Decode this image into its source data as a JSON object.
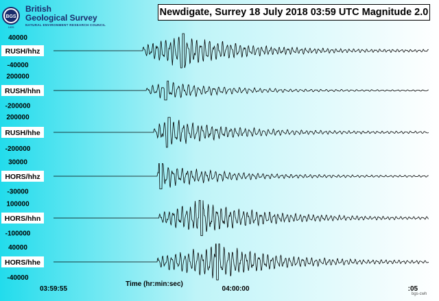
{
  "logo": {
    "seal_text": "BGS",
    "seal_year": "1835",
    "name_line1": "British",
    "name_line2": "Geological Survey",
    "council": "NATURAL ENVIRONMENT RESEARCH COUNCIL"
  },
  "colors": {
    "background_left": "#22dcec",
    "background_right": "#ffffff",
    "trace": "#000000",
    "logo": "#1a2b6b"
  },
  "stamp": "bgs-cwh",
  "chart_data": {
    "type": "line",
    "title": "Newdigate, Surrey  18 July 2018  03:59 UTC  Magnitude 2.0",
    "xlabel": "Time (hr:min:sec)",
    "x_ticks": [
      {
        "label": "03:59:55",
        "t": 0
      },
      {
        "label": "04:00:00",
        "t": 5
      },
      {
        "label": ":05",
        "t": 10
      }
    ],
    "xlim": [
      0,
      10.3
    ],
    "series": [
      {
        "name": "RUSH/hhz",
        "ylim": [
          -60000,
          60000
        ],
        "ticks": [
          {
            "label": "40000",
            "v": 40000
          },
          {
            "label": "-40000",
            "v": -40000
          }
        ],
        "onset_s": 2.45,
        "peak_s": 3.55,
        "peak": 50000,
        "period_s": 0.12
      },
      {
        "name": "RUSH/hhn",
        "ylim": [
          -280000,
          280000
        ],
        "ticks": [
          {
            "label": "200000",
            "v": 200000
          },
          {
            "label": "-200000",
            "v": -200000
          }
        ],
        "onset_s": 2.55,
        "peak_s": 3.1,
        "peak": 130000,
        "period_s": 0.14
      },
      {
        "name": "RUSH/hhe",
        "ylim": [
          -260000,
          260000
        ],
        "ticks": [
          {
            "label": "200000",
            "v": 200000
          },
          {
            "label": "-200000",
            "v": -200000
          }
        ],
        "onset_s": 2.75,
        "peak_s": 3.15,
        "peak": 190000,
        "period_s": 0.13
      },
      {
        "name": "HORS/hhz",
        "ylim": [
          -42000,
          42000
        ],
        "ticks": [
          {
            "label": "30000",
            "v": 30000
          },
          {
            "label": "-30000",
            "v": -30000
          }
        ],
        "onset_s": 2.85,
        "peak_s": 2.95,
        "peak": 26000,
        "period_s": 0.13
      },
      {
        "name": "HORS/hhn",
        "ylim": [
          -140000,
          140000
        ],
        "ticks": [
          {
            "label": "100000",
            "v": 100000
          },
          {
            "label": "-100000",
            "v": -100000
          }
        ],
        "onset_s": 2.9,
        "peak_s": 4.05,
        "peak": 120000,
        "period_s": 0.12
      },
      {
        "name": "HORS/hhe",
        "ylim": [
          -55000,
          55000
        ],
        "ticks": [
          {
            "label": "40000",
            "v": 40000
          },
          {
            "label": "-40000",
            "v": -40000
          }
        ],
        "onset_s": 2.85,
        "peak_s": 4.5,
        "peak": 48000,
        "period_s": 0.12
      }
    ],
    "grid": false,
    "legend": "none"
  }
}
